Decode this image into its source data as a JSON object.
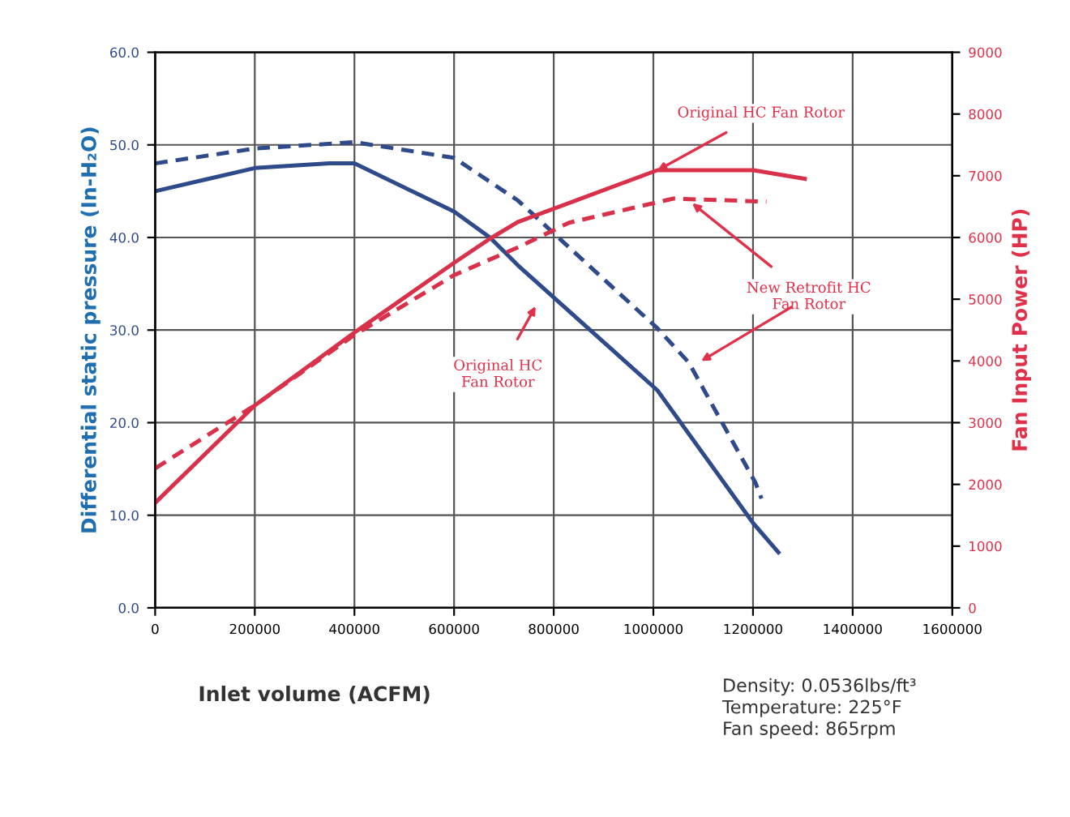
{
  "chart_data": {
    "type": "line",
    "xlabel": "Inlet volume (ACFM)",
    "ylabel": "Differential static pressure (In-H₂O)",
    "y2label": "Fan Input Power (HP)",
    "xlim": [
      0,
      1600000
    ],
    "xticks": [
      0,
      200000,
      400000,
      600000,
      800000,
      1000000,
      1200000,
      1400000,
      1600000
    ],
    "ylim": [
      0,
      60
    ],
    "yticks": [
      {
        "value": 0,
        "label": "0.0"
      },
      {
        "value": 10,
        "label": "10.0"
      },
      {
        "value": 20,
        "label": "20.0"
      },
      {
        "value": 30,
        "label": "30.0"
      },
      {
        "value": 40,
        "label": "40.0"
      },
      {
        "value": 50,
        "label": "50.0"
      },
      {
        "value": 60,
        "label": "60.0"
      }
    ],
    "y2lim": [
      0,
      9000
    ],
    "y2ticks": [
      0,
      1000,
      2000,
      3000,
      4000,
      5000,
      6000,
      7000,
      8000,
      9000
    ],
    "grid": true,
    "marker": "none",
    "series": [
      {
        "color": "#2e4a8a",
        "line_style": "solid",
        "x": [
          0,
          200000,
          350000,
          400000,
          600000,
          672000,
          728000,
          1008000,
          1201000,
          1251000
        ],
        "values": [
          45,
          47.5,
          48,
          48,
          42.8,
          40,
          37,
          23.5,
          9.1,
          6
        ]
      },
      {
        "color": "#2e4a8a",
        "line_style": "dashed",
        "x": [
          0,
          200000,
          400000,
          600000,
          728000,
          1008000,
          1071000,
          1205000,
          1217000
        ],
        "values": [
          48,
          49.6,
          50.3,
          48.6,
          44,
          30.2,
          26.5,
          13.5,
          11.8
        ]
      },
      {
        "color": "#d9314a",
        "line_style": "solid",
        "axis": "y2",
        "x": [
          0,
          200000,
          400000,
          600000,
          672000,
          728000,
          1008000,
          1201000,
          1304000
        ],
        "values": [
          1700,
          3280,
          4460,
          5590,
          5980,
          6250,
          7090,
          7090,
          6950
        ]
      },
      {
        "color": "#d9314a",
        "line_style": "dashed",
        "axis": "y2",
        "x": [
          0,
          200000,
          400000,
          600000,
          728000,
          831000,
          1040000,
          1227000
        ],
        "values": [
          2260,
          3280,
          4420,
          5390,
          5840,
          6240,
          6630,
          6580
        ]
      }
    ],
    "annotations": [
      {
        "text": "Original HC Fan Rotor",
        "x": 1000000,
        "y": 47
      },
      {
        "text": "New Retrofit HC\nFan Rotor",
        "x": 1071000,
        "y": 44
      },
      "Original HC\nFan Rotor",
      "Density: 0.0536lbs/ft³\nTemperature: 225°F\nFan speed: 865rpm"
    ]
  }
}
